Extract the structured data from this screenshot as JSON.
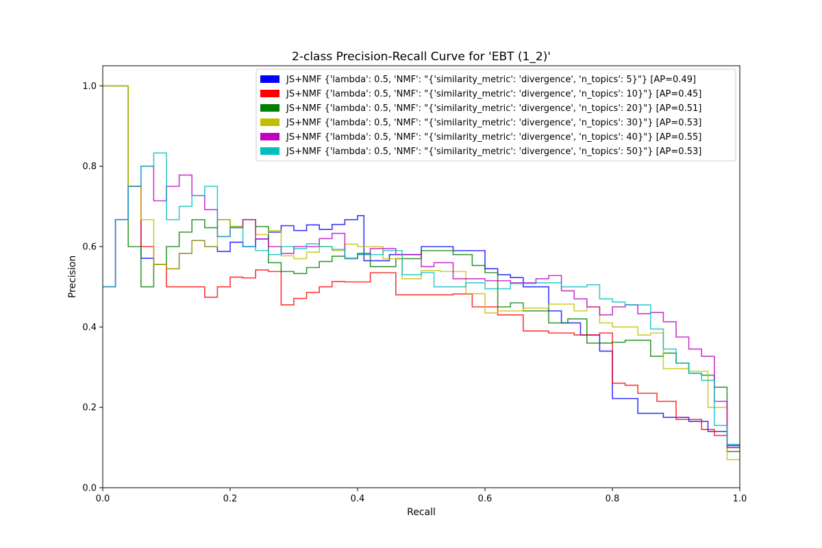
{
  "chart_data": {
    "type": "line",
    "title": "2-class Precision-Recall Curve for 'EBT (1_2)'",
    "xlabel": "Recall",
    "ylabel": "Precision",
    "xlim": [
      0.0,
      1.0
    ],
    "ylim": [
      0.0,
      1.05
    ],
    "xticks": [
      "0.0",
      "0.2",
      "0.4",
      "0.6",
      "0.8",
      "1.0"
    ],
    "yticks": [
      "0.0",
      "0.2",
      "0.4",
      "0.6",
      "0.8",
      "1.0"
    ],
    "grid": false,
    "legend_position": "top-right",
    "step": true,
    "series": [
      {
        "name": "JS+NMF {'lambda': 0.5, 'NMF': \"{'similarity_metric': 'divergence', 'n_topics': 5}\"} [AP=0.49]",
        "color": "#0000ff",
        "x": [
          0.0,
          0.02,
          0.04,
          0.06,
          0.08,
          0.1,
          0.12,
          0.14,
          0.16,
          0.18,
          0.2,
          0.22,
          0.24,
          0.26,
          0.28,
          0.3,
          0.32,
          0.34,
          0.36,
          0.38,
          0.4,
          0.41,
          0.45,
          0.5,
          0.55,
          0.6,
          0.62,
          0.64,
          0.66,
          0.7,
          0.72,
          0.75,
          0.78,
          0.8,
          0.84,
          0.88,
          0.92,
          0.95,
          0.98
        ],
        "y": [
          0.5,
          0.667,
          0.75,
          0.571,
          0.556,
          0.545,
          0.583,
          0.615,
          0.6,
          0.588,
          0.611,
          0.6,
          0.619,
          0.636,
          0.652,
          0.64,
          0.654,
          0.643,
          0.655,
          0.667,
          0.677,
          0.565,
          0.58,
          0.6,
          0.59,
          0.545,
          0.53,
          0.523,
          0.5,
          0.44,
          0.41,
          0.38,
          0.34,
          0.222,
          0.185,
          0.175,
          0.165,
          0.14,
          0.105
        ]
      },
      {
        "name": "JS+NMF {'lambda': 0.5, 'NMF': \"{'similarity_metric': 'divergence', 'n_topics': 10}\"} [AP=0.45]",
        "color": "#ff0000",
        "x": [
          0.0,
          0.02,
          0.04,
          0.06,
          0.08,
          0.1,
          0.12,
          0.14,
          0.16,
          0.18,
          0.2,
          0.22,
          0.24,
          0.26,
          0.28,
          0.3,
          0.32,
          0.34,
          0.36,
          0.38,
          0.4,
          0.42,
          0.46,
          0.5,
          0.55,
          0.58,
          0.62,
          0.66,
          0.7,
          0.74,
          0.78,
          0.8,
          0.82,
          0.84,
          0.87,
          0.9,
          0.94,
          0.96,
          0.98
        ],
        "y": [
          1.0,
          1.0,
          0.75,
          0.6,
          0.556,
          0.5,
          0.5,
          0.5,
          0.474,
          0.5,
          0.524,
          0.522,
          0.542,
          0.538,
          0.455,
          0.471,
          0.486,
          0.5,
          0.513,
          0.512,
          0.512,
          0.535,
          0.48,
          0.48,
          0.482,
          0.45,
          0.43,
          0.39,
          0.385,
          0.38,
          0.385,
          0.26,
          0.255,
          0.235,
          0.215,
          0.17,
          0.145,
          0.13,
          0.1
        ]
      },
      {
        "name": "JS+NMF {'lambda': 0.5, 'NMF': \"{'similarity_metric': 'divergence', 'n_topics': 20}\"} [AP=0.51]",
        "color": "#008000",
        "x": [
          0.0,
          0.02,
          0.04,
          0.06,
          0.08,
          0.1,
          0.12,
          0.14,
          0.16,
          0.18,
          0.2,
          0.22,
          0.24,
          0.26,
          0.28,
          0.3,
          0.32,
          0.34,
          0.36,
          0.38,
          0.4,
          0.42,
          0.46,
          0.5,
          0.55,
          0.58,
          0.6,
          0.62,
          0.64,
          0.66,
          0.7,
          0.73,
          0.76,
          0.8,
          0.82,
          0.86,
          0.88,
          0.9,
          0.92,
          0.94,
          0.96,
          0.98
        ],
        "y": [
          1.0,
          1.0,
          0.6,
          0.5,
          0.556,
          0.6,
          0.636,
          0.667,
          0.647,
          0.667,
          0.65,
          0.667,
          0.65,
          0.56,
          0.538,
          0.533,
          0.548,
          0.563,
          0.576,
          0.571,
          0.583,
          0.55,
          0.57,
          0.59,
          0.58,
          0.553,
          0.535,
          0.45,
          0.46,
          0.44,
          0.41,
          0.42,
          0.36,
          0.362,
          0.367,
          0.327,
          0.335,
          0.31,
          0.285,
          0.28,
          0.25,
          0.09
        ]
      },
      {
        "name": "JS+NMF {'lambda': 0.5, 'NMF': \"{'similarity_metric': 'divergence', 'n_topics': 30}\"} [AP=0.53]",
        "color": "#bfbf00",
        "x": [
          0.0,
          0.02,
          0.04,
          0.06,
          0.08,
          0.1,
          0.12,
          0.14,
          0.16,
          0.18,
          0.2,
          0.22,
          0.24,
          0.26,
          0.28,
          0.3,
          0.32,
          0.34,
          0.36,
          0.38,
          0.4,
          0.44,
          0.47,
          0.5,
          0.53,
          0.57,
          0.6,
          0.62,
          0.66,
          0.7,
          0.74,
          0.76,
          0.78,
          0.8,
          0.84,
          0.86,
          0.88,
          0.92,
          0.95,
          0.98
        ],
        "y": [
          1.0,
          1.0,
          0.75,
          0.667,
          0.556,
          0.545,
          0.583,
          0.615,
          0.6,
          0.667,
          0.65,
          0.667,
          0.63,
          0.64,
          0.577,
          0.57,
          0.586,
          0.6,
          0.59,
          0.606,
          0.6,
          0.57,
          0.52,
          0.54,
          0.538,
          0.483,
          0.435,
          0.44,
          0.447,
          0.457,
          0.44,
          0.45,
          0.41,
          0.4,
          0.38,
          0.385,
          0.296,
          0.29,
          0.2,
          0.07
        ]
      },
      {
        "name": "JS+NMF {'lambda': 0.5, 'NMF': \"{'similarity_metric': 'divergence', 'n_topics': 40}\"} [AP=0.55]",
        "color": "#bf00bf",
        "x": [
          0.0,
          0.02,
          0.04,
          0.06,
          0.08,
          0.1,
          0.12,
          0.14,
          0.16,
          0.18,
          0.2,
          0.22,
          0.24,
          0.26,
          0.28,
          0.3,
          0.32,
          0.34,
          0.36,
          0.38,
          0.4,
          0.42,
          0.46,
          0.5,
          0.52,
          0.55,
          0.57,
          0.6,
          0.64,
          0.68,
          0.7,
          0.72,
          0.74,
          0.76,
          0.78,
          0.8,
          0.82,
          0.84,
          0.86,
          0.88,
          0.9,
          0.92,
          0.94,
          0.96,
          0.98
        ],
        "y": [
          0.5,
          0.667,
          0.75,
          0.8,
          0.714,
          0.75,
          0.778,
          0.727,
          0.692,
          0.625,
          0.647,
          0.667,
          0.619,
          0.6,
          0.583,
          0.6,
          0.6,
          0.62,
          0.633,
          0.57,
          0.58,
          0.595,
          0.58,
          0.55,
          0.56,
          0.52,
          0.52,
          0.515,
          0.51,
          0.52,
          0.528,
          0.49,
          0.47,
          0.45,
          0.43,
          0.45,
          0.455,
          0.433,
          0.436,
          0.413,
          0.375,
          0.345,
          0.327,
          0.215,
          0.1
        ]
      },
      {
        "name": "JS+NMF {'lambda': 0.5, 'NMF': \"{'similarity_metric': 'divergence', 'n_topics': 50}\"} [AP=0.53]",
        "color": "#00bfbf",
        "x": [
          0.0,
          0.02,
          0.04,
          0.06,
          0.08,
          0.1,
          0.12,
          0.14,
          0.16,
          0.18,
          0.2,
          0.22,
          0.24,
          0.26,
          0.28,
          0.3,
          0.32,
          0.34,
          0.36,
          0.38,
          0.4,
          0.44,
          0.47,
          0.5,
          0.52,
          0.57,
          0.6,
          0.64,
          0.68,
          0.72,
          0.76,
          0.78,
          0.8,
          0.82,
          0.86,
          0.88,
          0.9,
          0.92,
          0.94,
          0.96,
          0.98
        ],
        "y": [
          0.5,
          0.667,
          0.75,
          0.8,
          0.833,
          0.667,
          0.7,
          0.727,
          0.75,
          0.625,
          0.647,
          0.6,
          0.59,
          0.58,
          0.6,
          0.595,
          0.607,
          0.6,
          0.593,
          0.57,
          0.58,
          0.59,
          0.53,
          0.535,
          0.5,
          0.51,
          0.495,
          0.508,
          0.51,
          0.5,
          0.505,
          0.47,
          0.462,
          0.455,
          0.395,
          0.345,
          0.31,
          0.285,
          0.267,
          0.155,
          0.108
        ]
      }
    ]
  }
}
